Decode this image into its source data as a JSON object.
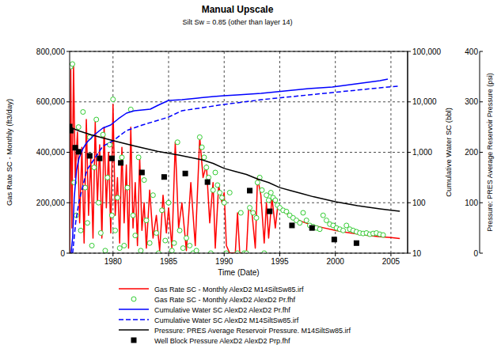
{
  "chart_data": {
    "type": "line",
    "title": "Manual Upscale",
    "subtitle": "Silt Sw = 0.85 (other than layer 14)",
    "x_label": "Time (Date)",
    "y_label": "Gas Rate SC - Monthly (ft3/day)",
    "y2_label": "Cumulative Water SC (bbl)",
    "y3_label": "Pressure: PRES Average Reservoir Pressure (psi)",
    "xlim": [
      1976.1,
      2006.5
    ],
    "xticks": [
      1980,
      1985,
      1990,
      1995,
      2000,
      2005
    ],
    "ylim": [
      0,
      800000
    ],
    "yticks": [
      0,
      {
        "value": 200000,
        "label": "200,000"
      },
      {
        "value": 400000,
        "label": "400,000"
      },
      {
        "value": 600000,
        "label": "600,000"
      },
      {
        "value": 800000,
        "label": "800,000"
      }
    ],
    "y2lim": [
      10,
      100000
    ],
    "y2ticks": [
      10,
      100,
      {
        "value": 1000,
        "label": "1,000"
      },
      {
        "value": 10000,
        "label": "10,000"
      },
      {
        "value": 100000,
        "label": "100,000"
      }
    ],
    "y3lim": [
      0,
      400
    ],
    "y3ticks": [
      0,
      100,
      200,
      300,
      400
    ],
    "log": "y2",
    "grid": true,
    "legend": "bottom",
    "series": [
      {
        "name": "Gas Rate SC - Monthly AlexD2 M14SiltSw85.irf",
        "type": "line",
        "color": "#ff0000",
        "line_style": "solid",
        "x": [
          1976.1,
          1976.2,
          1976.3,
          1976.45,
          1976.6,
          1976.8,
          1977.0,
          1977.2,
          1977.4,
          1977.6,
          1977.8,
          1978.0,
          1978.2,
          1978.4,
          1978.6,
          1978.8,
          1979.0,
          1979.2,
          1979.4,
          1979.6,
          1979.8,
          1980.0,
          1980.2,
          1980.4,
          1980.6,
          1980.8,
          1981.0,
          1981.2,
          1981.4,
          1981.6,
          1981.8,
          1982.0,
          1982.2,
          1982.4,
          1982.6,
          1982.8,
          1983.0,
          1983.3,
          1983.6,
          1983.9,
          1984.2,
          1984.5,
          1984.8,
          1985.0,
          1985.3,
          1985.6,
          1985.9,
          1986.2,
          1986.6,
          1987.0,
          1987.4,
          1987.8,
          1988.1,
          1988.4,
          1988.7,
          1989.0,
          1989.2,
          1989.5,
          1989.8,
          1990.0,
          1990.2,
          1990.5,
          1991.0,
          1991.2,
          1991.4,
          1992.0,
          1992.2,
          1992.5,
          1992.8,
          1993.0,
          1993.3,
          1993.6,
          1993.8,
          1994.0,
          1994.3,
          1994.6,
          1994.8,
          1995.5,
          1996,
          1997,
          1998,
          1999,
          2000,
          2001,
          2002,
          2003,
          2004,
          2005,
          2005.8
        ],
        "values": [
          0,
          730000,
          100000,
          750000,
          300000,
          480000,
          120000,
          420000,
          40000,
          530000,
          150000,
          380000,
          60000,
          520000,
          200000,
          430000,
          60000,
          500000,
          180000,
          400000,
          80000,
          590000,
          150000,
          300000,
          40000,
          420000,
          120000,
          350000,
          20000,
          500000,
          100000,
          280000,
          30000,
          380000,
          90000,
          200000,
          20000,
          250000,
          60000,
          150000,
          10000,
          230000,
          80000,
          180000,
          20000,
          440000,
          100000,
          200000,
          10000,
          280000,
          30000,
          460000,
          300000,
          350000,
          120000,
          280000,
          20000,
          270000,
          200000,
          240000,
          30000,
          0,
          0,
          160000,
          0,
          0,
          180000,
          160000,
          20000,
          300000,
          230000,
          40000,
          200000,
          60000,
          220000,
          100000,
          180000,
          160000,
          145000,
          125000,
          110000,
          100000,
          90000,
          82000,
          76000,
          70000,
          65000,
          62000,
          58000
        ]
      },
      {
        "name": "Gas Rate SC - Monthly AlexD2 AlexD2 Pr.fhf",
        "type": "scatter",
        "color": "#33cc33",
        "marker": "circle",
        "x": [
          1976.2,
          1976.35,
          1976.5,
          1976.7,
          1976.9,
          1977.1,
          1977.3,
          1977.5,
          1977.7,
          1977.9,
          1978.1,
          1978.3,
          1978.5,
          1978.7,
          1978.9,
          1979.1,
          1979.3,
          1979.5,
          1979.7,
          1979.9,
          1980.0,
          1980.2,
          1980.4,
          1980.6,
          1980.8,
          1981.0,
          1981.3,
          1981.6,
          1981.8,
          1982.0,
          1982.3,
          1982.5,
          1982.8,
          1983.0,
          1983.3,
          1983.6,
          1983.9,
          1984.1,
          1984.4,
          1984.7,
          1985.0,
          1985.3,
          1985.5,
          1985.8,
          1986.0,
          1986.3,
          1986.6,
          1986.9,
          1987.2,
          1987.5,
          1987.8,
          1988.0,
          1988.2,
          1988.4,
          1988.6,
          1988.8,
          1989.0,
          1989.2,
          1989.4,
          1989.6,
          1989.8,
          1990.0,
          1990.2,
          1990.5,
          1991.2,
          1991.5,
          1991.8,
          1992.0,
          1992.3,
          1992.6,
          1992.9,
          1993.0,
          1993.2,
          1993.4,
          1993.6,
          1993.8,
          1994.0,
          1994.2,
          1994.4,
          1994.6,
          1994.8,
          1995.0,
          1995.3,
          1995.6,
          1995.9,
          1996.2,
          1996.5,
          1996.8,
          1997.1,
          1997.4,
          1997.7,
          1998.0,
          1998.3,
          1998.6,
          1998.9,
          1999.2,
          1999.5,
          1999.8,
          2000.1,
          2000.4,
          2000.7,
          2001.0,
          2001.3,
          2001.6,
          2001.9,
          2002.2,
          2002.5,
          2002.8,
          2003.1,
          2003.4,
          2003.7,
          2004.0,
          2004.3
        ],
        "values": [
          740000,
          750000,
          280000,
          150000,
          500000,
          90000,
          560000,
          260000,
          120000,
          460000,
          30000,
          340000,
          530000,
          200000,
          80000,
          470000,
          10000,
          300000,
          430000,
          150000,
          610000,
          90000,
          220000,
          20000,
          380000,
          30000,
          260000,
          570000,
          150000,
          70000,
          380000,
          10000,
          290000,
          130000,
          40000,
          230000,
          80000,
          0,
          170000,
          50000,
          200000,
          10000,
          40000,
          440000,
          90000,
          20000,
          60000,
          30000,
          0,
          10000,
          460000,
          420000,
          380000,
          340000,
          300000,
          0,
          250000,
          320000,
          270000,
          240000,
          220000,
          200000,
          0,
          240000,
          0,
          160000,
          0,
          0,
          180000,
          160000,
          140000,
          280000,
          300000,
          250000,
          0,
          230000,
          210000,
          240000,
          220000,
          210000,
          190000,
          180000,
          170000,
          165000,
          150000,
          140000,
          130000,
          120000,
          160000,
          130000,
          110000,
          105000,
          100000,
          95000,
          150000,
          130000,
          115000,
          110000,
          100000,
          95000,
          90000,
          110000,
          95000,
          90000,
          85000,
          80000,
          78000,
          80000,
          75000,
          78000,
          80000,
          75000,
          72000
        ]
      },
      {
        "name": "Cumulative Water SC AlexD2 AlexD2 Pr.fhf",
        "type": "line",
        "axis": "y2",
        "color": "#0000ff",
        "line_style": "solid",
        "x": [
          1976.23,
          1976.37,
          1976.51,
          1976.72,
          1976.94,
          1977.29,
          1977.65,
          1978.36,
          1979.07,
          1979.79,
          1980.5,
          1981.21,
          1981.92,
          1982.64,
          1983.35,
          1984.06,
          1984.99,
          1986.2,
          1987.63,
          1989.05,
          1989.97,
          1991.18,
          1993.32,
          1995.46,
          1997.59,
          1999.73,
          2001.87,
          2004,
          2004.72
        ],
        "values": [
          10,
          21,
          125,
          444,
          762,
          1177,
          1571,
          2254,
          3009,
          3475,
          4645,
          5975,
          6665,
          6909,
          7160,
          8575,
          10640,
          11000,
          11890,
          12770,
          13250,
          13720,
          14750,
          16440,
          18330,
          19690,
          22760,
          26300,
          28260
        ]
      },
      {
        "name": "Cumulative Water SC AlexD2 M14SiltSw85.irf",
        "type": "line",
        "axis": "y2",
        "color": "#0000ff",
        "line_style": "dashed",
        "x": [
          1976.37,
          1976.65,
          1976.94,
          1977.29,
          1977.65,
          1978.36,
          1979.07,
          1980,
          1981.21,
          1982.64,
          1984.06,
          1984.99,
          1986.2,
          1987.63,
          1989.05,
          1989.97,
          1991.18,
          1993.32,
          1995.46,
          1997.59,
          1999.73,
          2001.87,
          2004,
          2005.7
        ],
        "values": [
          10,
          42,
          105,
          215,
          444,
          762,
          1312,
          1688,
          2697,
          3475,
          4315,
          4988,
          6665,
          7430,
          8280,
          8900,
          9560,
          11040,
          12300,
          13720,
          15290,
          17030,
          18980,
          20420
        ]
      },
      {
        "name": "Pressure: PRES Average Reservoir Pressure. M14SiltSw85.irf",
        "type": "line",
        "axis": "y3",
        "color": "#000000",
        "line_style": "solid",
        "x": [
          1976.1,
          1977,
          1978,
          1979,
          1980,
          1982,
          1984,
          1986,
          1988,
          1989,
          1990,
          1991,
          1992,
          1993,
          1994,
          1995,
          1996,
          1997,
          1998,
          1999,
          2000,
          2001,
          2002,
          2003,
          2004,
          2005,
          2005.8
        ],
        "values": [
          250,
          242,
          235,
          229,
          223,
          212,
          202,
          194,
          185,
          178,
          168,
          162,
          156,
          147,
          140,
          130,
          124,
          118,
          112,
          107,
          102,
          98,
          94,
          91,
          88,
          85,
          83
        ]
      },
      {
        "name": "Well Block Pressure AlexD2 AlexD2 Prp.fhf",
        "type": "scatter",
        "axis": "y3",
        "color": "#000000",
        "marker": "square",
        "x": [
          1976.1,
          1976.2,
          1976.6,
          1976.9,
          1977.9,
          1978.8,
          1979.9,
          1980.7,
          1982.6,
          1984.6,
          1986.5,
          1988.5,
          1992.3,
          1994.1,
          1996.1,
          1997.9,
          1999.9,
          2001.9
        ],
        "values": [
          251,
          243,
          209,
          201,
          193,
          188,
          188,
          179,
          160,
          151,
          158,
          141,
          124,
          83,
          55,
          50,
          27,
          20
        ]
      }
    ]
  }
}
